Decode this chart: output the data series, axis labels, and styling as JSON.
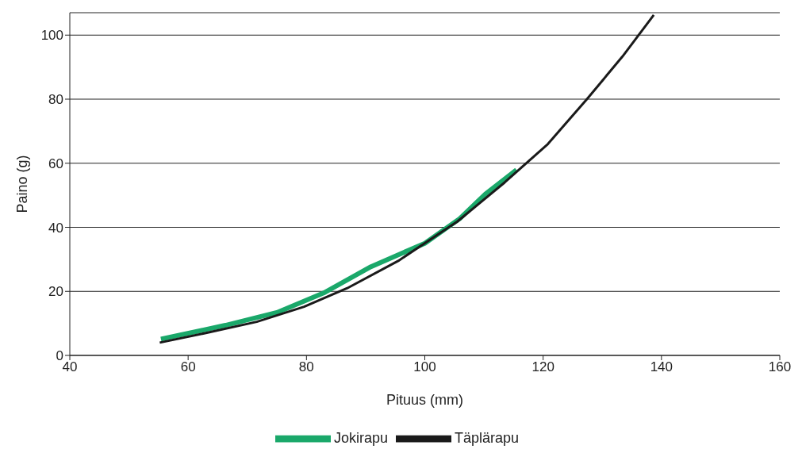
{
  "chart_data": {
    "type": "line",
    "xlabel": "Pituus (mm)",
    "ylabel": "Paino (g)",
    "series": [
      {
        "name": "Jokirapu",
        "color": "#1aa86a",
        "x": [
          55.4,
          66.3,
          75,
          82.9,
          90.9,
          100,
          105.9,
          110.2,
          115.5
        ],
        "values": [
          5.1,
          9.4,
          13.4,
          19.5,
          27.7,
          35,
          42.7,
          50.3,
          57.9
        ]
      },
      {
        "name": "Täplärapu",
        "color": "#1a1a1a",
        "x": [
          55.2,
          63,
          71.6,
          79.6,
          86.9,
          95.5,
          105.5,
          113.5,
          120.8,
          127.4,
          133.4,
          138.7
        ],
        "values": [
          4,
          7,
          10.5,
          15.2,
          21,
          29.5,
          41.8,
          54,
          66,
          80,
          93.3,
          106.3
        ]
      }
    ],
    "xlim": [
      40,
      160
    ],
    "xticks": [
      40,
      60,
      80,
      100,
      120,
      140,
      160
    ],
    "ylim": [
      0,
      107
    ],
    "yticks": [
      0,
      20,
      40,
      60,
      80,
      100
    ],
    "grid": "y",
    "legend": "bottom",
    "marker": "none",
    "line_style": "solid"
  }
}
